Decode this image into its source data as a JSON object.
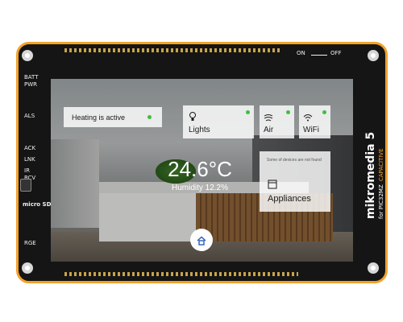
{
  "board": {
    "brand": "mikromedia 5",
    "model": "for PIC32MZ",
    "variant": "CAPACITIVE",
    "switch_on": "ON",
    "switch_off": "OFF",
    "left_labels": [
      "BATT",
      "PWR",
      "ALS",
      "ACK",
      "LNK",
      "IR",
      "RCV"
    ],
    "micro_sd": "micro SD",
    "rge_label": "RGE",
    "accent_color": "#f2a22a"
  },
  "screen": {
    "heating": {
      "label": "Heating is active",
      "status_color": "#3fbf3f"
    },
    "tiles": [
      {
        "label": "Lights",
        "icon": "bulb-icon"
      },
      {
        "label": "Air",
        "icon": "fan-icon"
      },
      {
        "label": "WiFi",
        "icon": "wifi-icon"
      }
    ],
    "appliances": {
      "notice": "Some of devices are not found",
      "label": "Appliances",
      "icon": "appliance-icon"
    },
    "temperature": "24.6°C",
    "humidity": "Humidity 12.2%",
    "home_icon": "home-icon"
  }
}
